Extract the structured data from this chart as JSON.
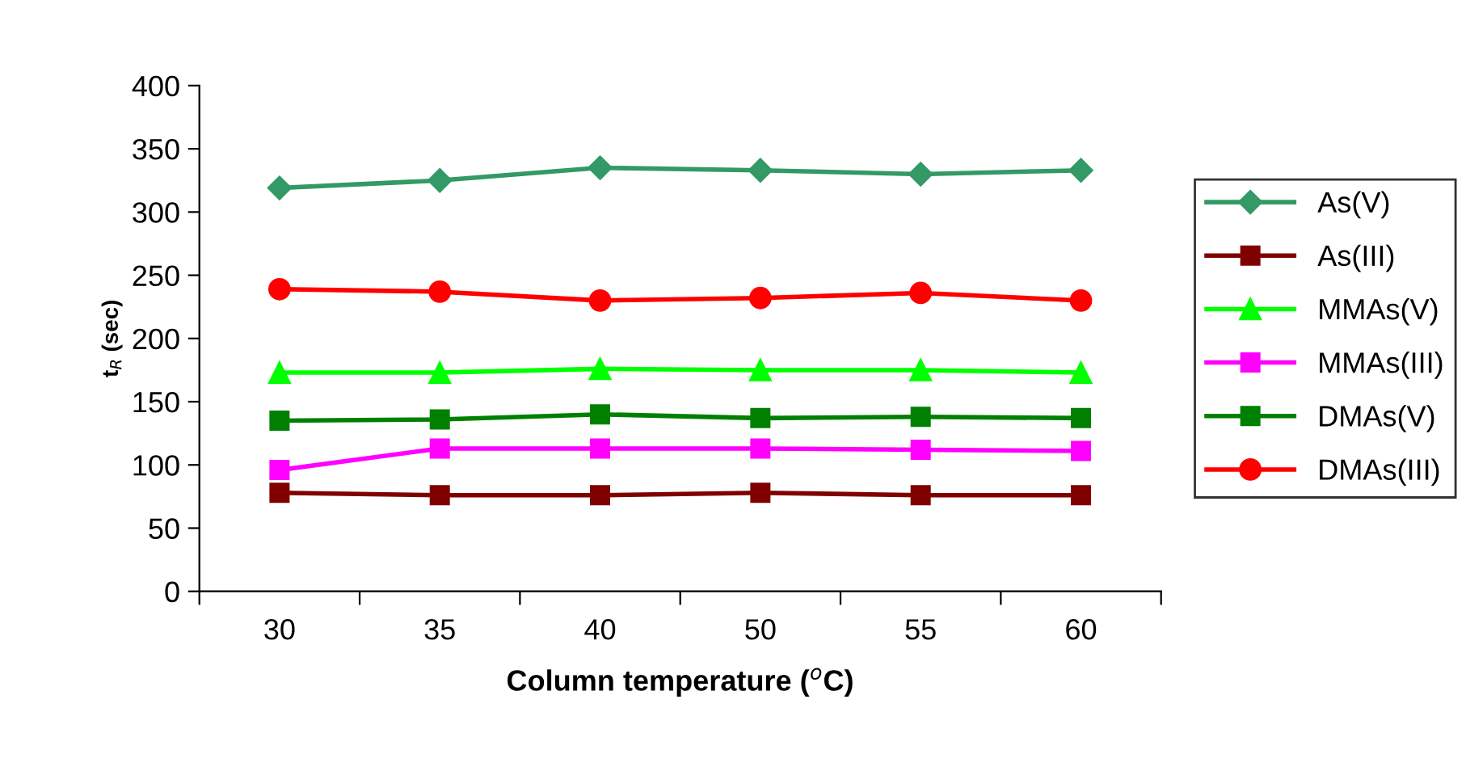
{
  "chart_data": {
    "type": "line",
    "xlabel": "Column temperature ($^{o}$C)",
    "ylabel": "t$_{R}$ (sec)",
    "categories": [
      "30",
      "35",
      "40",
      "50",
      "55",
      "60"
    ],
    "ylim": [
      0,
      400
    ],
    "yticks": [
      0,
      50,
      100,
      150,
      200,
      250,
      300,
      350,
      400
    ],
    "grid": false,
    "legend": "right",
    "line_style": "solid",
    "series": [
      {
        "name": "As(V)",
        "color": "#339966",
        "marker": "diamond",
        "values": [
          319,
          325,
          335,
          333,
          330,
          333
        ]
      },
      {
        "name": "As(III)",
        "color": "#800000",
        "marker": "square",
        "values": [
          78,
          76,
          76,
          78,
          76,
          76
        ]
      },
      {
        "name": "MMAs(V)",
        "color": "#00ff00",
        "marker": "triangle",
        "values": [
          173,
          173,
          176,
          175,
          175,
          173
        ]
      },
      {
        "name": "MMAs(III)",
        "color": "#ff00ff",
        "marker": "square",
        "values": [
          96,
          113,
          113,
          113,
          112,
          111
        ]
      },
      {
        "name": "DMAs(V)",
        "color": "#008000",
        "marker": "square",
        "values": [
          135,
          136,
          140,
          137,
          138,
          137
        ]
      },
      {
        "name": "DMAs(III)",
        "color": "#ff0000",
        "marker": "circle",
        "values": [
          239,
          237,
          230,
          232,
          236,
          230
        ]
      }
    ]
  }
}
